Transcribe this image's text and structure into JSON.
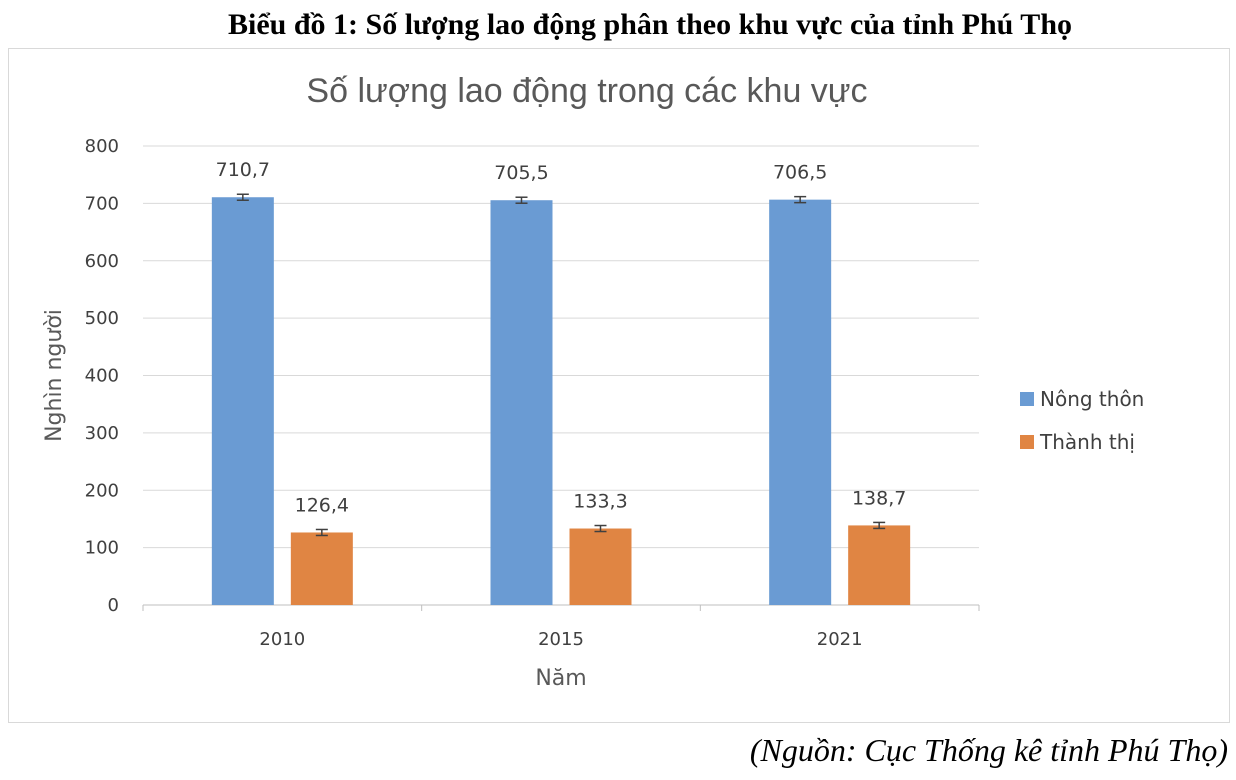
{
  "figure_title": "Biểu đồ 1: Số lượng lao động phân theo khu vực của tỉnh Phú Thọ",
  "source_note": "(Nguồn: Cục Thống kê tỉnh Phú Thọ)",
  "chart_data": {
    "type": "bar",
    "title": "Số lượng lao động trong các khu vực",
    "xlabel": "Năm",
    "ylabel": "Nghìn người",
    "categories": [
      "2010",
      "2015",
      "2021"
    ],
    "ylim": [
      0,
      800
    ],
    "yticks": [
      "0",
      "100",
      "200",
      "300",
      "400",
      "500",
      "600",
      "700",
      "800"
    ],
    "grid": true,
    "legend_position": "right",
    "error_bars": true,
    "series": [
      {
        "name": "Nông thôn",
        "color": "#6a9bd3",
        "values": [
          710.7,
          705.5,
          706.5
        ],
        "labels": [
          "710,7",
          "705,5",
          "706,5"
        ]
      },
      {
        "name": "Thành thị",
        "color": "#e08543",
        "values": [
          126.4,
          133.3,
          138.7
        ],
        "labels": [
          "126,4",
          "133,3",
          "138,7"
        ]
      }
    ]
  }
}
